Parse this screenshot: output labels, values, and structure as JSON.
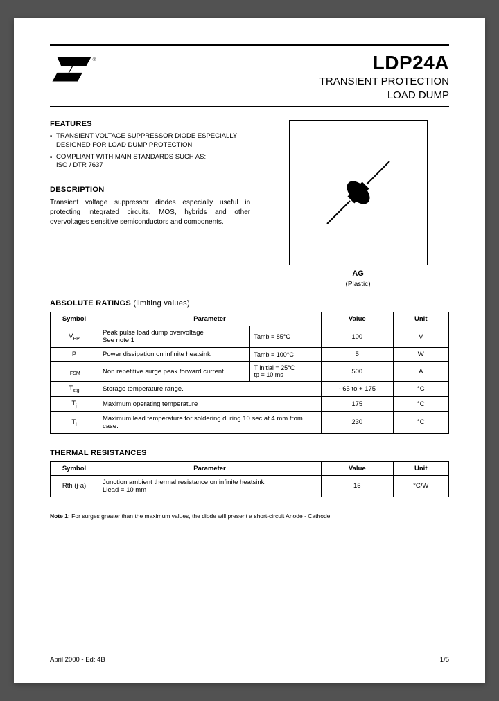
{
  "header": {
    "part_number": "LDP24A",
    "subtitle_line1": "TRANSIENT PROTECTION",
    "subtitle_line2": "LOAD DUMP"
  },
  "features": {
    "heading": "FEATURES",
    "items": [
      "TRANSIENT VOLTAGE SUPPRESSOR DIODE ESPECIALLY DESIGNED FOR LOAD DUMP PROTECTION",
      "COMPLIANT WITH MAIN STANDARDS SUCH AS:\nISO / DTR 7637"
    ]
  },
  "description": {
    "heading": "DESCRIPTION",
    "text": "Transient voltage suppressor diodes especially useful in protecting integrated circuits, MOS, hybrids and other overvoltages sensitive semiconductors and components."
  },
  "package": {
    "code": "AG",
    "material": "(Plastic)"
  },
  "abs_ratings": {
    "heading": "ABSOLUTE RATINGS",
    "heading_light": " (limiting values)",
    "columns": [
      "Symbol",
      "Parameter",
      "Value",
      "Unit"
    ],
    "rows": [
      {
        "symbol": "V",
        "sub": "PP",
        "param": "Peak pulse load dump overvoltage\nSee note 1",
        "cond": "Tamb = 85°C",
        "value": "100",
        "unit": "V"
      },
      {
        "symbol": "P",
        "sub": "",
        "param": "Power dissipation on infinite heatsink",
        "cond": "Tamb = 100°C",
        "value": "5",
        "unit": "W"
      },
      {
        "symbol": "I",
        "sub": "FSM",
        "param": "Non repetitive surge peak forward current.",
        "cond": "T initial = 25°C\ntp = 10 ms",
        "value": "500",
        "unit": "A"
      },
      {
        "symbol": "T",
        "sub": "stg",
        "param": "Storage temperature range.",
        "cond": "",
        "value": "- 65 to + 175",
        "unit": "°C"
      },
      {
        "symbol": "T",
        "sub": "j",
        "param": "Maximum operating temperature",
        "cond": "",
        "value": "175",
        "unit": "°C"
      },
      {
        "symbol": "T",
        "sub": "l",
        "param": "Maximum lead temperature for soldering during 10 sec at 4 mm from case.",
        "cond": "",
        "value": "230",
        "unit": "°C"
      }
    ]
  },
  "thermal": {
    "heading": "THERMAL RESISTANCES",
    "columns": [
      "Symbol",
      "Parameter",
      "Value",
      "Unit"
    ],
    "rows": [
      {
        "symbol": "Rth (j-a)",
        "param": "Junction ambient thermal resistance on infinite heatsink\nLlead = 10 mm",
        "value": "15",
        "unit": "°C/W"
      }
    ]
  },
  "note": {
    "label": "Note 1:",
    "text": " For surges greater than the maximum values, the diode will present a short-circuit Anode - Cathode."
  },
  "footer": {
    "left": "April 2000 - Ed: 4B",
    "right": "1/5"
  },
  "colors": {
    "page_bg": "#ffffff",
    "text": "#000000",
    "rule": "#000000"
  }
}
